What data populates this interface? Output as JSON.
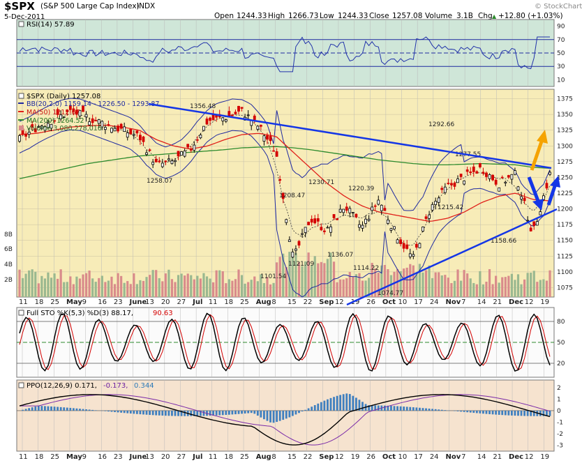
{
  "header": {
    "symbol": "$SPX",
    "name": "(S&P 500 Large Cap Index)",
    "exchange": "INDX",
    "date": "5-Dec-2011",
    "open_label": "Open",
    "open": "1244.33",
    "high_label": "High",
    "high": "1266.73",
    "low_label": "Low",
    "low": "1244.33",
    "close_label": "Close",
    "close": "1257.08",
    "volume_label": "Volume",
    "volume": "3.1B",
    "chg_label": "Chg",
    "chg": "+12.80 (+1.03%)",
    "chg_arrow": "▲",
    "watermark": "© StockCharts.com"
  },
  "colors": {
    "price_up": "#000000",
    "price_down": "#d40000",
    "bb": "#1f2aa0",
    "ma50": "#e0201a",
    "ma200": "#2c8a2c",
    "trend": "#1436e6",
    "rsi_bg": "#cfe6d8",
    "price_bg": "#f7ecb8",
    "sto_bg": "#fbfbfb",
    "ppo_bg": "#f6e3cf",
    "orange_arrow": "#f5a300",
    "blue_arrow": "#1436e6"
  },
  "xaxis": {
    "labels": [
      "11",
      "18",
      "25",
      "May",
      "9",
      "16",
      "23",
      "June",
      "13",
      "20",
      "27",
      "Jul",
      "11",
      "18",
      "25",
      "Aug",
      "8",
      "15",
      "22",
      "Sep",
      "12",
      "19",
      "26",
      "Oct",
      "10",
      "17",
      "24",
      "Nov",
      "7",
      "14",
      "21",
      "Dec",
      "12",
      "19"
    ]
  },
  "rsi": {
    "legend": "RSI(14) 57.89",
    "ticks": [
      "90",
      "70",
      "50",
      "30",
      "10"
    ]
  },
  "price": {
    "legend_main": "$SPX (Daily) 1257.08",
    "legend_bb": "BB(20,2.0) 1159.14 - 1226.50 - 1293.87",
    "legend_ma50": "MA(50) 1212.67",
    "legend_ma200": "MA(200) 1264.52",
    "legend_vol": "Volume 3,080,278,016",
    "ticks": [
      "1375",
      "1350",
      "1325",
      "1300",
      "1275",
      "1250",
      "1225",
      "1200",
      "1175",
      "1150",
      "1125",
      "1100",
      "1075"
    ],
    "vol_ticks": [
      "8B",
      "6B",
      "4B",
      "2B"
    ],
    "annotations": [
      "1356.48",
      "1258.07",
      "1101.54",
      "1208.47",
      "1121.09",
      "1230.71",
      "1136.07",
      "1220.39",
      "1114.22",
      "1074.77",
      "1292.66",
      "1277.55",
      "1215.42",
      "1158.66"
    ]
  },
  "sto": {
    "legend_main": "Full STO %K(5,3) %D(3) 88.17,",
    "legend_d": "90.63",
    "ticks": [
      "80",
      "50",
      "20"
    ]
  },
  "ppo": {
    "legend_main": "PPO(12,26,9) 0.171,",
    "legend_signal": "-0.173,",
    "legend_hist": "0.344",
    "ticks": [
      "2",
      "1",
      "0",
      "-1",
      "-2",
      "-3"
    ]
  },
  "chart_data": {
    "type": "line",
    "title": "$SPX (S&P 500 Large Cap Index) INDX",
    "x": [
      "Apr 11",
      "Apr 18",
      "Apr 25",
      "May 2",
      "May 9",
      "May 16",
      "May 23",
      "Jun 1",
      "Jun 13",
      "Jun 20",
      "Jun 27",
      "Jul 1",
      "Jul 11",
      "Jul 18",
      "Jul 25",
      "Aug 1",
      "Aug 8",
      "Aug 15",
      "Aug 22",
      "Sep 1",
      "Sep 12",
      "Sep 19",
      "Sep 26",
      "Oct 3",
      "Oct 10",
      "Oct 17",
      "Oct 24",
      "Nov 1",
      "Nov 7",
      "Nov 14",
      "Nov 21",
      "Dec 1"
    ],
    "series": [
      {
        "name": "$SPX (Daily)",
        "values": [
          1310,
          1330,
          1342,
          1355,
          1345,
          1335,
          1325,
          1315,
          1270,
          1275,
          1295,
          1340,
          1345,
          1355,
          1330,
          1290,
          1120,
          1185,
          1165,
          1205,
          1170,
          1215,
          1160,
          1120,
          1200,
          1235,
          1250,
          1265,
          1240,
          1255,
          1160,
          1255
        ]
      },
      {
        "name": "MA(50)",
        "values": [
          1318,
          1320,
          1325,
          1330,
          1332,
          1333,
          1330,
          1325,
          1310,
          1300,
          1295,
          1300,
          1310,
          1318,
          1320,
          1315,
          1290,
          1265,
          1240,
          1220,
          1205,
          1195,
          1190,
          1185,
          1180,
          1185,
          1195,
          1210,
          1220,
          1225,
          1215,
          1212.67
        ]
      },
      {
        "name": "MA(200)",
        "values": [
          1248,
          1254,
          1260,
          1266,
          1272,
          1276,
          1280,
          1284,
          1286,
          1288,
          1290,
          1292,
          1294,
          1297,
          1298,
          1299,
          1297,
          1294,
          1290,
          1286,
          1282,
          1278,
          1275,
          1272,
          1270,
          1270,
          1271,
          1272,
          1271,
          1270,
          1266,
          1264.52
        ]
      }
    ],
    "rsi_last": 57.89,
    "sto_k_last": 88.17,
    "sto_d_last": 90.63,
    "ppo_last": 0.171,
    "ppo_signal_last": -0.173,
    "ppo_hist_last": 0.344,
    "ylim": [
      1060,
      1390
    ]
  }
}
